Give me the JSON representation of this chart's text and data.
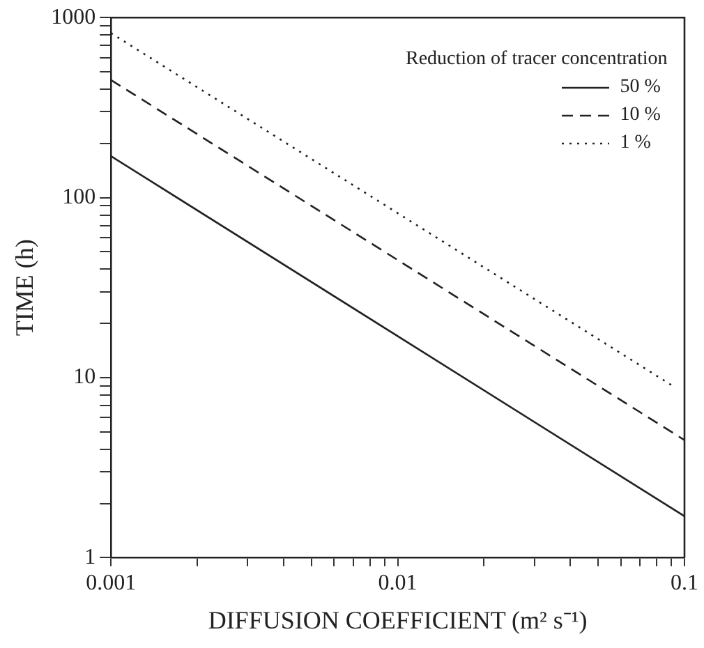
{
  "chart_data": {
    "type": "line",
    "xlabel": "DIFFUSION COEFFICIENT (m² s⁻¹)",
    "ylabel": "TIME (h)",
    "legend_title": "Reduction of tracer concentration",
    "log": "xy",
    "xlim": [
      0.001,
      0.1
    ],
    "ylim": [
      1,
      1000
    ],
    "xticks": [
      0.001,
      {
        "value": 0.002,
        "label": null
      },
      {
        "value": 0.003,
        "label": null
      },
      {
        "value": 0.004,
        "label": null
      },
      {
        "value": 0.005,
        "label": null
      },
      {
        "value": 0.006,
        "label": null
      },
      {
        "value": 0.007,
        "label": null
      },
      {
        "value": 0.008,
        "label": null
      },
      {
        "value": 0.009,
        "label": null
      },
      0.01,
      {
        "value": 0.02,
        "label": null
      },
      {
        "value": 0.03,
        "label": null
      },
      {
        "value": 0.04,
        "label": null
      },
      {
        "value": 0.05,
        "label": null
      },
      {
        "value": 0.06,
        "label": null
      },
      {
        "value": 0.07,
        "label": null
      },
      {
        "value": 0.08,
        "label": null
      },
      {
        "value": 0.09,
        "label": null
      },
      0.1
    ],
    "yticks": [
      1,
      {
        "value": 2,
        "label": null
      },
      {
        "value": 3,
        "label": null
      },
      {
        "value": 4,
        "label": null
      },
      {
        "value": 5,
        "label": null
      },
      {
        "value": 6,
        "label": null
      },
      {
        "value": 7,
        "label": null
      },
      {
        "value": 8,
        "label": null
      },
      {
        "value": 9,
        "label": null
      },
      10,
      {
        "value": 20,
        "label": null
      },
      {
        "value": 30,
        "label": null
      },
      {
        "value": 40,
        "label": null
      },
      {
        "value": 50,
        "label": null
      },
      {
        "value": 60,
        "label": null
      },
      {
        "value": 70,
        "label": null
      },
      {
        "value": 80,
        "label": null
      },
      {
        "value": 90,
        "label": null
      },
      100,
      {
        "value": 200,
        "label": null
      },
      {
        "value": 300,
        "label": null
      },
      {
        "value": 400,
        "label": null
      },
      {
        "value": 500,
        "label": null
      },
      {
        "value": 600,
        "label": null
      },
      {
        "value": 700,
        "label": null
      },
      {
        "value": 800,
        "label": null
      },
      {
        "value": 900,
        "label": null
      },
      1000
    ],
    "grid": false,
    "legend": "top right",
    "marker": "none",
    "series": [
      {
        "name": "50 %",
        "color": "#222222",
        "line_style": "solid",
        "x": [
          0.001,
          0.1
        ],
        "values": [
          170,
          1.7
        ]
      },
      {
        "name": "10 %",
        "color": "#222222",
        "line_style": "dashed",
        "x": [
          0.001,
          0.1
        ],
        "values": [
          450,
          4.5
        ]
      },
      {
        "name": "1 %",
        "color": "#222222",
        "line_style": "dotted",
        "x": [
          0.001,
          0.09
        ],
        "values": [
          820,
          9.1
        ]
      }
    ]
  }
}
